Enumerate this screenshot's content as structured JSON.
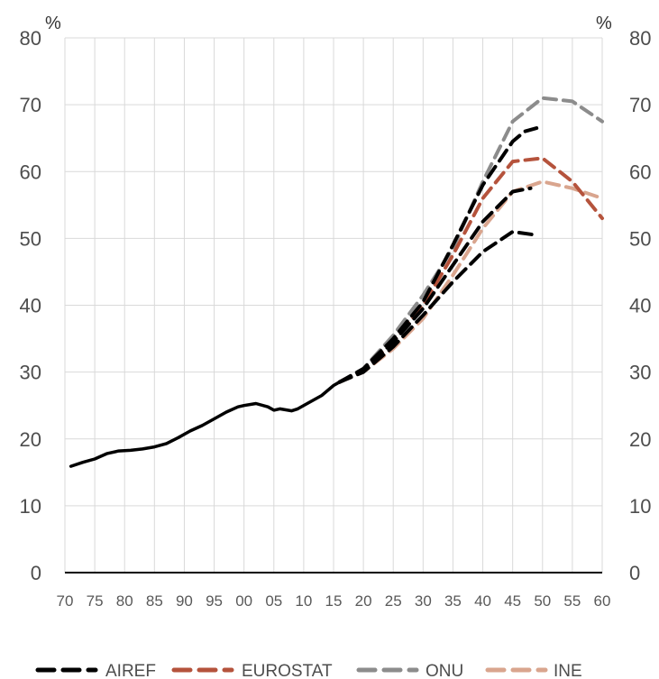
{
  "chart_data": {
    "type": "line",
    "y_unit_left": "%",
    "y_unit_right": "%",
    "ylim": [
      0,
      80
    ],
    "y_ticks": [
      "0",
      "10",
      "20",
      "30",
      "40",
      "50",
      "60",
      "70",
      "80"
    ],
    "xlim": [
      1970,
      2060
    ],
    "x_ticks": [
      "70",
      "75",
      "80",
      "85",
      "90",
      "95",
      "00",
      "05",
      "10",
      "15",
      "20",
      "25",
      "30",
      "35",
      "40",
      "45",
      "50",
      "55",
      "60"
    ],
    "grid": true,
    "legend_position": "bottom",
    "colors": {
      "historical": "#000000",
      "AIREF": "#000000",
      "EUROSTAT": "#b5533c",
      "ONU": "#8c8c8c",
      "INE": "#d9a58e"
    },
    "historical": {
      "x": [
        1971,
        1973,
        1975,
        1977,
        1979,
        1981,
        1983,
        1985,
        1987,
        1989,
        1991,
        1993,
        1995,
        1997,
        1999,
        2000,
        2002,
        2004,
        2005,
        2006,
        2008,
        2009,
        2011,
        2013,
        2015,
        2016
      ],
      "y": [
        15.9,
        16.5,
        17.0,
        17.8,
        18.2,
        18.3,
        18.5,
        18.8,
        19.3,
        20.2,
        21.2,
        22.0,
        23.0,
        24.0,
        24.8,
        25.0,
        25.3,
        24.8,
        24.3,
        24.5,
        24.2,
        24.5,
        25.5,
        26.5,
        28.0,
        28.5
      ]
    },
    "series": [
      {
        "name": "AIREF",
        "style": "dashed",
        "x": [
          2016,
          2020,
          2025,
          2030,
          2035,
          2040,
          2045,
          2047,
          2049
        ],
        "y": [
          28.5,
          30.5,
          35.0,
          40.5,
          49.0,
          58.0,
          64.5,
          66.0,
          66.5
        ]
      },
      {
        "style": "dashed",
        "x": [
          2016,
          2020,
          2025,
          2030,
          2035,
          2040,
          2045,
          2048
        ],
        "y": [
          28.5,
          30.2,
          34.5,
          39.5,
          46.0,
          52.5,
          57.0,
          57.5
        ]
      },
      {
        "style": "dashed",
        "x": [
          2016,
          2020,
          2025,
          2030,
          2035,
          2040,
          2045,
          2049
        ],
        "y": [
          28.5,
          30.0,
          33.8,
          38.5,
          43.5,
          48.0,
          51.0,
          50.5
        ]
      },
      {
        "name": "EUROSTAT",
        "style": "dashed",
        "x": [
          2016,
          2020,
          2025,
          2030,
          2035,
          2040,
          2045,
          2050,
          2055,
          2060
        ],
        "y": [
          28.5,
          30.3,
          34.5,
          40.0,
          47.5,
          56.0,
          61.5,
          62.0,
          58.5,
          53.0
        ]
      },
      {
        "name": "ONU",
        "style": "dashed",
        "x": [
          2016,
          2020,
          2025,
          2030,
          2035,
          2040,
          2045,
          2050,
          2055,
          2060
        ],
        "y": [
          28.5,
          30.5,
          35.5,
          41.5,
          48.5,
          58.5,
          67.5,
          71.0,
          70.5,
          67.5
        ]
      },
      {
        "name": "INE",
        "style": "dashed",
        "x": [
          2016,
          2020,
          2025,
          2030,
          2035,
          2040,
          2045,
          2050,
          2055,
          2060
        ],
        "y": [
          28.5,
          30.0,
          33.5,
          38.0,
          44.5,
          51.5,
          57.0,
          58.5,
          57.5,
          56.0
        ]
      }
    ],
    "legend": [
      "AIREF",
      "EUROSTAT",
      "ONU",
      "INE"
    ]
  }
}
